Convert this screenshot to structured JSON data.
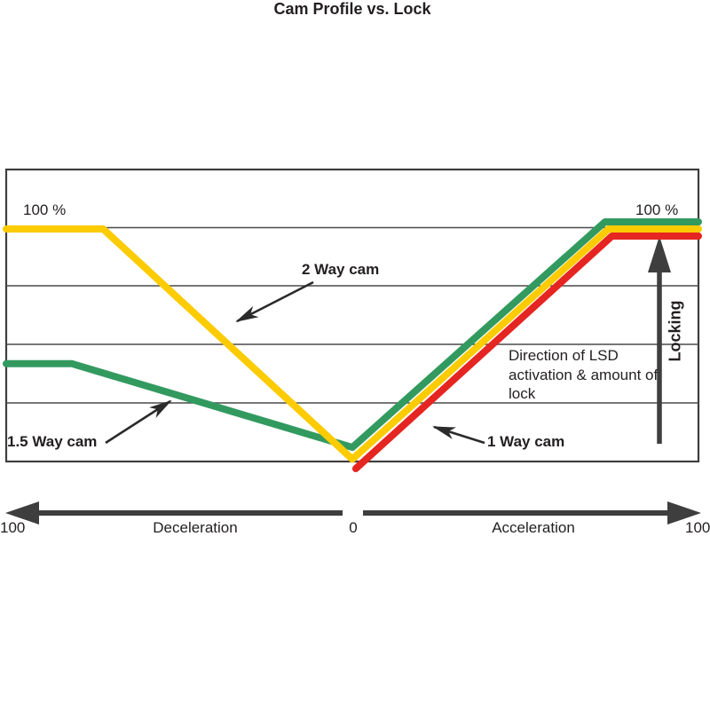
{
  "title": "Cam Profile vs. Lock",
  "labels": {
    "top_left_pct": "100 %",
    "top_right_pct": "100 %",
    "two_way_cam": "2 Way cam",
    "one_five_way_cam": "1.5 Way cam",
    "one_way_cam": "1 Way cam",
    "direction_note": "Direction of LSD activation & amount of lock",
    "locking": "Locking"
  },
  "x_axis": {
    "left_value": "100",
    "left_label": "Deceleration",
    "center_value": "0",
    "right_label": "Acceleration",
    "right_value": "100"
  },
  "colors": {
    "background": "#ffffff",
    "text": "#231f20",
    "grid": "#4a4a4a",
    "border": "#3e3e3e",
    "axis_arrow": "#3e3e3e",
    "annotation_arrow": "#2b2b2b",
    "two_way_yellow": "#fccb00",
    "one_five_way_green": "#339a5f",
    "one_way_red": "#e52521"
  },
  "chart_data": {
    "type": "line",
    "title": "Cam Profile vs. Lock",
    "xlabel_left": "Deceleration",
    "xlabel_right": "Acceleration",
    "ylabel": "Locking",
    "x_range": [
      -100,
      100
    ],
    "x_ticks": [
      "100",
      "0",
      "100"
    ],
    "y_range_pct": [
      0,
      100
    ],
    "y_top_labels": [
      "100 %",
      "100 %"
    ],
    "gridlines": {
      "orientation": "horizontal",
      "internal_count": 4,
      "step_pct": 25
    },
    "legend_position": "inline-annotations",
    "series": [
      {
        "name": "1.5 Way cam",
        "color": "#339a5f",
        "points_x_pct": [
          [
            -100,
            39
          ],
          [
            -81,
            39
          ],
          [
            0,
            3
          ],
          [
            73,
            100
          ],
          [
            100,
            100
          ]
        ]
      },
      {
        "name": "2 Way cam",
        "color": "#fccb00",
        "points_x_pct": [
          [
            -100,
            100
          ],
          [
            -72,
            100
          ],
          [
            0,
            1
          ],
          [
            74,
            100
          ],
          [
            100,
            100
          ]
        ]
      },
      {
        "name": "1 Way cam",
        "color": "#e52521",
        "points_x_pct": [
          [
            1,
            0
          ],
          [
            75,
            100
          ],
          [
            100,
            100
          ]
        ]
      }
    ],
    "annotations": [
      {
        "text": "Direction of LSD activation & amount of lock",
        "type": "note"
      },
      {
        "text": "Locking",
        "type": "vertical-arrow-label"
      }
    ]
  }
}
